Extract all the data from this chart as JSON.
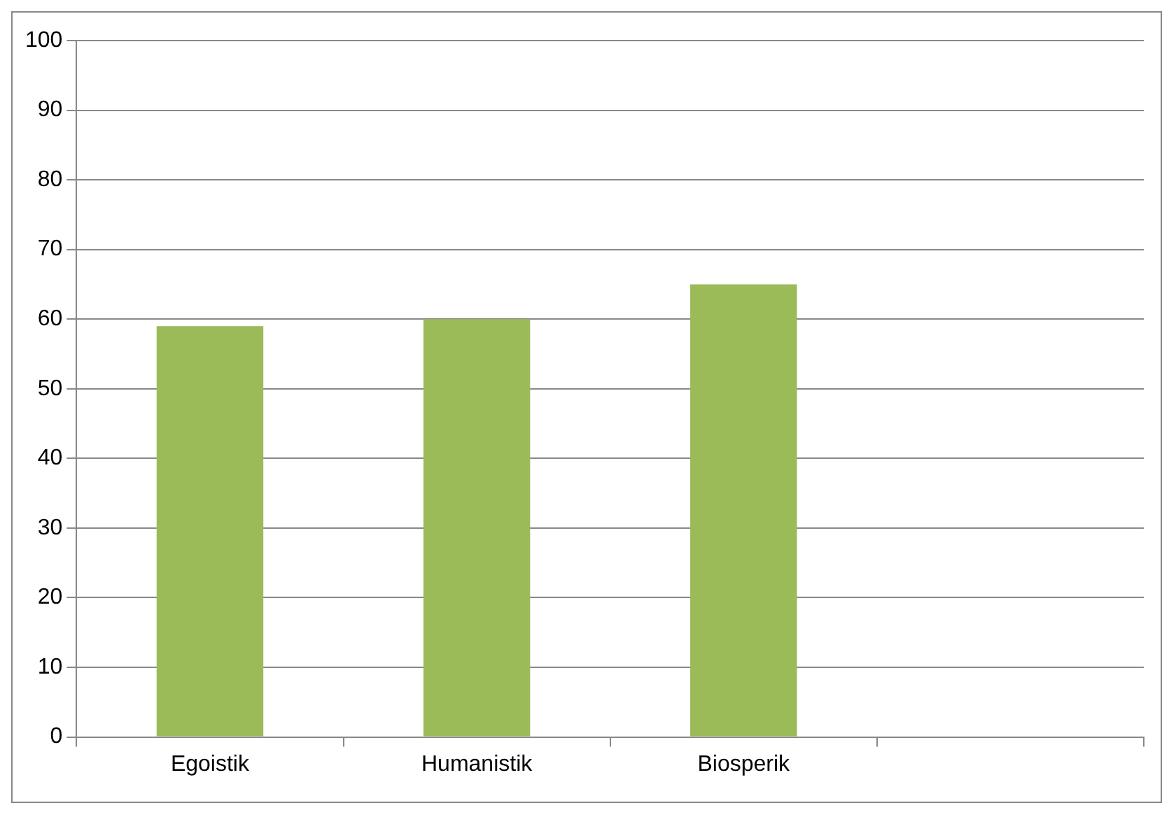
{
  "chart_data": {
    "type": "bar",
    "categories": [
      "Egoistik",
      "Humanistik",
      "Biosperik",
      null
    ],
    "values": [
      59,
      60,
      65,
      null
    ],
    "color": "#9bbb59",
    "ylim": [
      0,
      100
    ],
    "yticks": [
      0,
      10,
      20,
      30,
      40,
      50,
      60,
      70,
      80,
      90,
      100
    ],
    "grid": "y",
    "legend": false
  }
}
